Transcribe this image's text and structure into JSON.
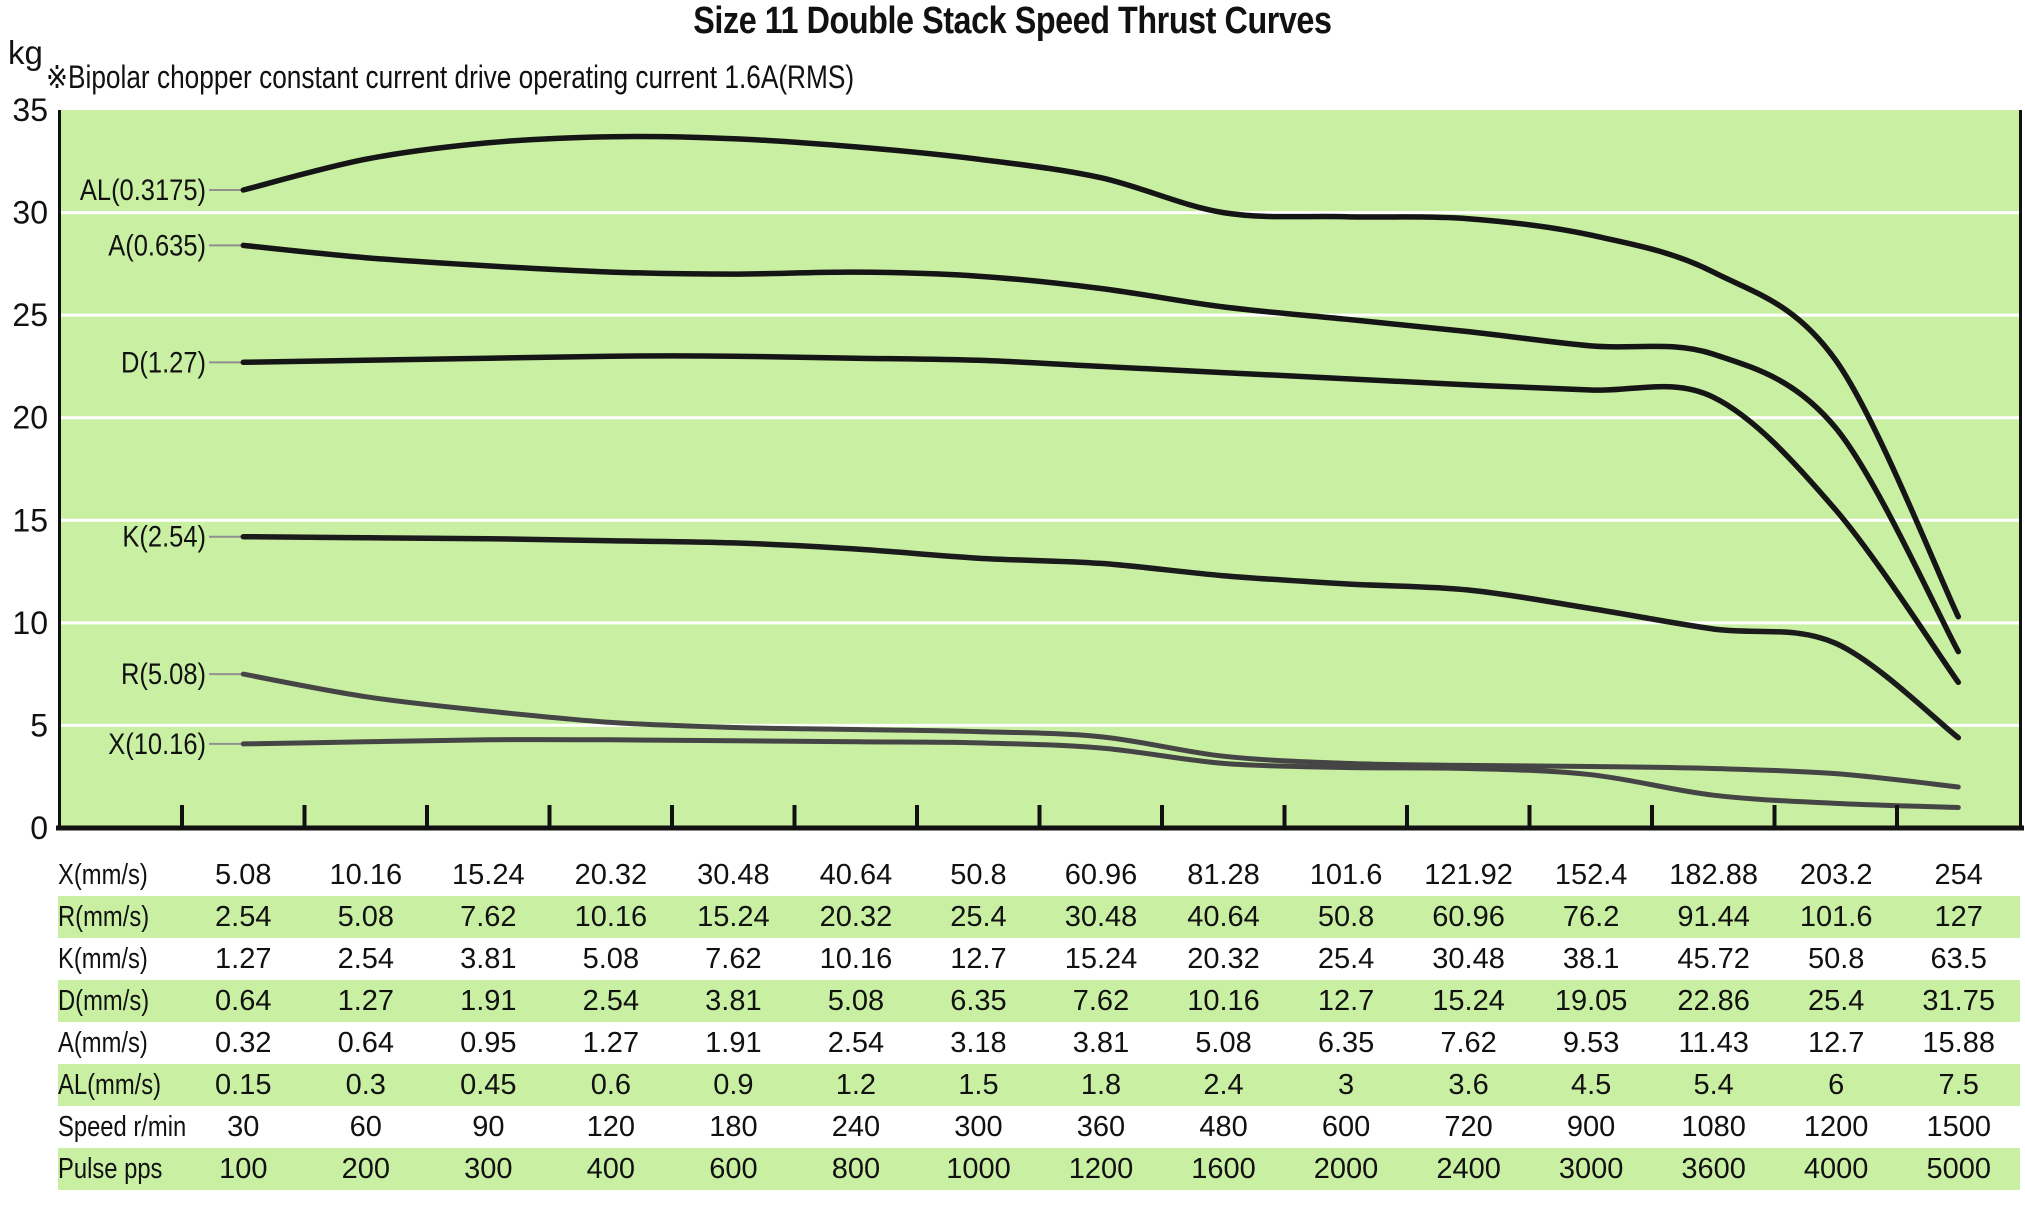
{
  "chart_data": {
    "type": "line",
    "title": "Size 11 Double Stack Speed Thrust Curves",
    "note": "※Bipolar chopper constant current drive operating current 1.6A(RMS)",
    "y_unit": "kg",
    "ylim": [
      0,
      35
    ],
    "ytick_step": 5,
    "yticks": [
      0,
      5,
      10,
      15,
      20,
      25,
      30,
      35
    ],
    "grid": true,
    "legend_position": "inline-left-of-curves",
    "plot_bg_color": "#c9f0a2",
    "grid_color": "#ffffff",
    "black_curve_color": "#151515",
    "gray_curve_color": "#454545",
    "leader_line_color": "#909090",
    "columns": 15,
    "series": [
      {
        "name": "AL(0.3175)",
        "color": "#151515",
        "width": 5.5,
        "values": [
          31.1,
          32.6,
          33.4,
          33.7,
          33.6,
          33.2,
          32.6,
          31.7,
          30.0,
          29.8,
          29.7,
          28.9,
          27.1,
          22.8,
          10.3
        ]
      },
      {
        "name": "A(0.635)",
        "color": "#151515",
        "width": 5.5,
        "values": [
          28.4,
          27.8,
          27.4,
          27.1,
          27.0,
          27.1,
          26.9,
          26.3,
          25.4,
          24.8,
          24.2,
          23.5,
          23.1,
          19.5,
          8.6
        ]
      },
      {
        "name": "D(1.27)",
        "color": "#151515",
        "width": 5.5,
        "values": [
          22.7,
          22.8,
          22.9,
          23.0,
          23.0,
          22.9,
          22.8,
          22.5,
          22.2,
          21.9,
          21.6,
          21.35,
          21.0,
          15.5,
          7.1
        ]
      },
      {
        "name": "K(2.54)",
        "color": "#1b1b1b",
        "width": 5.5,
        "values": [
          14.2,
          14.15,
          14.1,
          14.0,
          13.9,
          13.6,
          13.15,
          12.9,
          12.3,
          11.9,
          11.6,
          10.7,
          9.7,
          9.0,
          4.4
        ]
      },
      {
        "name": "R(5.08)",
        "color": "#454545",
        "width": 5,
        "values": [
          7.5,
          6.4,
          5.7,
          5.15,
          4.9,
          4.8,
          4.7,
          4.45,
          3.5,
          3.15,
          3.05,
          3.0,
          2.9,
          2.65,
          2.0
        ]
      },
      {
        "name": "X(10.16)",
        "color": "#454545",
        "width": 5,
        "values": [
          4.1,
          4.2,
          4.3,
          4.3,
          4.25,
          4.2,
          4.15,
          3.9,
          3.15,
          2.95,
          2.9,
          2.6,
          1.6,
          1.2,
          1.0
        ]
      }
    ],
    "table": {
      "stripe_color": "#c9f0a2",
      "rows": [
        {
          "label": "X(mm/s)",
          "values": [
            "5.08",
            "10.16",
            "15.24",
            "20.32",
            "30.48",
            "40.64",
            "50.8",
            "60.96",
            "81.28",
            "101.6",
            "121.92",
            "152.4",
            "182.88",
            "203.2",
            "254"
          ]
        },
        {
          "label": "R(mm/s)",
          "values": [
            "2.54",
            "5.08",
            "7.62",
            "10.16",
            "15.24",
            "20.32",
            "25.4",
            "30.48",
            "40.64",
            "50.8",
            "60.96",
            "76.2",
            "91.44",
            "101.6",
            "127"
          ]
        },
        {
          "label": "K(mm/s)",
          "values": [
            "1.27",
            "2.54",
            "3.81",
            "5.08",
            "7.62",
            "10.16",
            "12.7",
            "15.24",
            "20.32",
            "25.4",
            "30.48",
            "38.1",
            "45.72",
            "50.8",
            "63.5"
          ]
        },
        {
          "label": "D(mm/s)",
          "values": [
            "0.64",
            "1.27",
            "1.91",
            "2.54",
            "3.81",
            "5.08",
            "6.35",
            "7.62",
            "10.16",
            "12.7",
            "15.24",
            "19.05",
            "22.86",
            "25.4",
            "31.75"
          ]
        },
        {
          "label": "A(mm/s)",
          "values": [
            "0.32",
            "0.64",
            "0.95",
            "1.27",
            "1.91",
            "2.54",
            "3.18",
            "3.81",
            "5.08",
            "6.35",
            "7.62",
            "9.53",
            "11.43",
            "12.7",
            "15.88"
          ]
        },
        {
          "label": "AL(mm/s)",
          "values": [
            "0.15",
            "0.3",
            "0.45",
            "0.6",
            "0.9",
            "1.2",
            "1.5",
            "1.8",
            "2.4",
            "3",
            "3.6",
            "4.5",
            "5.4",
            "6",
            "7.5"
          ]
        },
        {
          "label": "Speed r/min",
          "values": [
            "30",
            "60",
            "90",
            "120",
            "180",
            "240",
            "300",
            "360",
            "480",
            "600",
            "720",
            "900",
            "1080",
            "1200",
            "1500"
          ]
        },
        {
          "label": "Pulse pps",
          "values": [
            "100",
            "200",
            "300",
            "400",
            "600",
            "800",
            "1000",
            "1200",
            "1600",
            "2000",
            "2400",
            "3000",
            "3600",
            "4000",
            "5000"
          ]
        }
      ]
    }
  }
}
